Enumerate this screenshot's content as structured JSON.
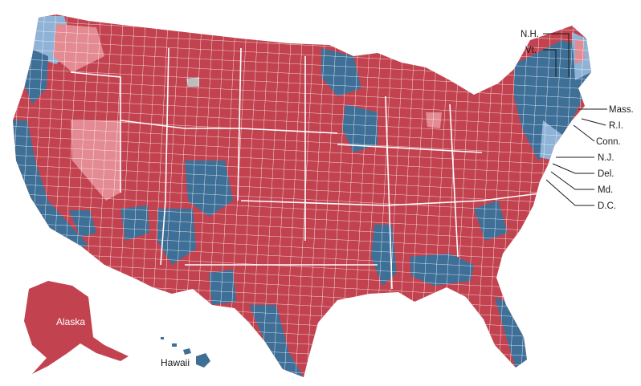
{
  "colors": {
    "red": "#c2434f",
    "light_red": "#e38a92",
    "blue": "#3e6f97",
    "light_blue": "#8fb3d6",
    "gray": "#bdbdbd",
    "border": "#ffffff"
  },
  "labels": {
    "alaska": "Alaska",
    "hawaii": "Hawaii",
    "nh": "N.H.",
    "vt": "Vt.",
    "mass": "Mass.",
    "ri": "R.I.",
    "conn": "Conn.",
    "nj": "N.J.",
    "del": "Del.",
    "md": "Md.",
    "dc": "D.C."
  }
}
